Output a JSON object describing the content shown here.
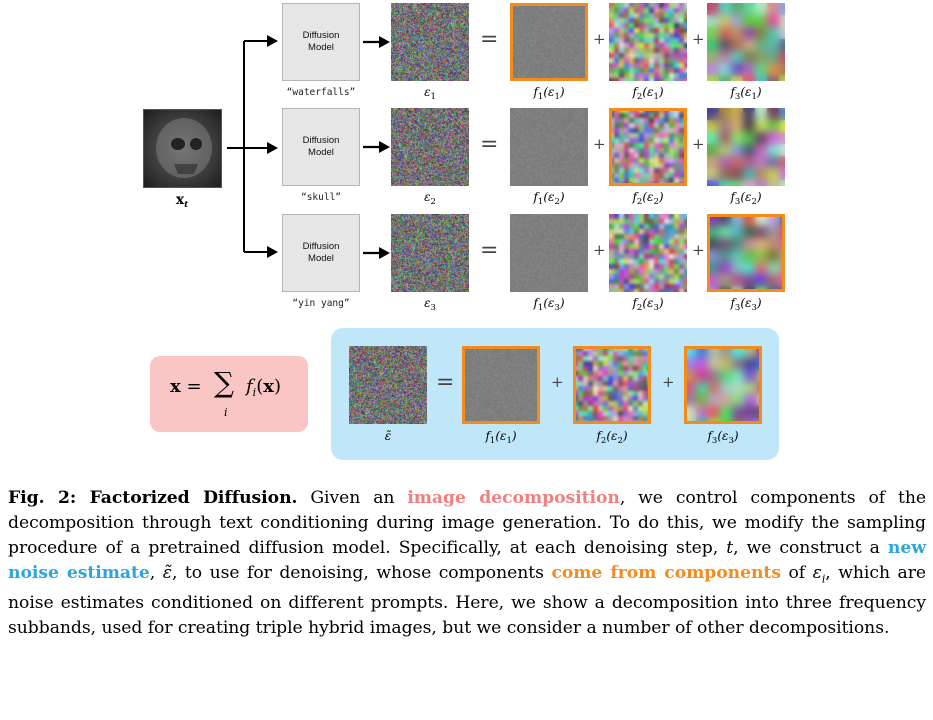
{
  "figure": {
    "model_label_line1": "Diffusion",
    "model_label_line2": "Model",
    "input_label": "x",
    "input_sub": "t",
    "rows": [
      {
        "prompt": "“waterfalls”",
        "noise_label": "ε",
        "noise_sub": "1",
        "components": [
          {
            "f": "f",
            "f_sub": "1",
            "arg": "ε",
            "arg_sub": "1",
            "highlighted": true
          },
          {
            "f": "f",
            "f_sub": "2",
            "arg": "ε",
            "arg_sub": "1",
            "highlighted": false
          },
          {
            "f": "f",
            "f_sub": "3",
            "arg": "ε",
            "arg_sub": "1",
            "highlighted": false
          }
        ]
      },
      {
        "prompt": "“skull”",
        "noise_label": "ε",
        "noise_sub": "2",
        "components": [
          {
            "f": "f",
            "f_sub": "1",
            "arg": "ε",
            "arg_sub": "2",
            "highlighted": false
          },
          {
            "f": "f",
            "f_sub": "2",
            "arg": "ε",
            "arg_sub": "2",
            "highlighted": true
          },
          {
            "f": "f",
            "f_sub": "3",
            "arg": "ε",
            "arg_sub": "2",
            "highlighted": false
          }
        ]
      },
      {
        "prompt": "“yin yang”",
        "noise_label": "ε",
        "noise_sub": "3",
        "components": [
          {
            "f": "f",
            "f_sub": "1",
            "arg": "ε",
            "arg_sub": "3",
            "highlighted": false
          },
          {
            "f": "f",
            "f_sub": "2",
            "arg": "ε",
            "arg_sub": "3",
            "highlighted": false
          },
          {
            "f": "f",
            "f_sub": "3",
            "arg": "ε",
            "arg_sub": "3",
            "highlighted": true
          }
        ]
      }
    ],
    "equation": "x = ∑ f(x)",
    "equation_parts": {
      "lhs": "x",
      "eq": "=",
      "sum": "∑",
      "index": "i",
      "f": "f",
      "f_sub": "i",
      "arg": "(x)"
    },
    "combined": {
      "noise_label": "ε̃",
      "components": [
        {
          "f": "f",
          "f_sub": "1",
          "arg": "ε",
          "arg_sub": "1"
        },
        {
          "f": "f",
          "f_sub": "2",
          "arg": "ε",
          "arg_sub": "2"
        },
        {
          "f": "f",
          "f_sub": "3",
          "arg": "ε",
          "arg_sub": "3"
        }
      ]
    },
    "operators": {
      "equals": "=",
      "plus": "+"
    }
  },
  "caption": {
    "heading": "Fig. 2: Factorized Diffusion.",
    "t1": " Given an ",
    "hl1": "image decomposition",
    "t2": ", we control components of the decomposition through text conditioning during image generation. To do this, we modify the sampling procedure of a pretrained diffusion model. Specifically, at each denoising step, ",
    "t_var": "t",
    "t3": ", we construct a ",
    "hl2": "new noise estimate",
    "t4": ", ",
    "eps_tilde": "ε̃",
    "t5": ", to use for denoising, whose components ",
    "hl3": "come from components",
    "t6": " of ",
    "eps_i": "ε",
    "eps_i_sub": "i",
    "t7": ", which are noise estimates conditioned on different prompts. Here, we show a decomposition into three frequency subbands, used for creating triple hybrid images, but we consider a number of other decompositions."
  },
  "colors": {
    "highlight_border": "#f28c1c",
    "pink_box": "#f9c5c5",
    "blue_box": "#bfe6f9",
    "pink_text": "#f07f7f",
    "blue_text": "#2aa6df",
    "orange_text": "#f28c1c"
  }
}
